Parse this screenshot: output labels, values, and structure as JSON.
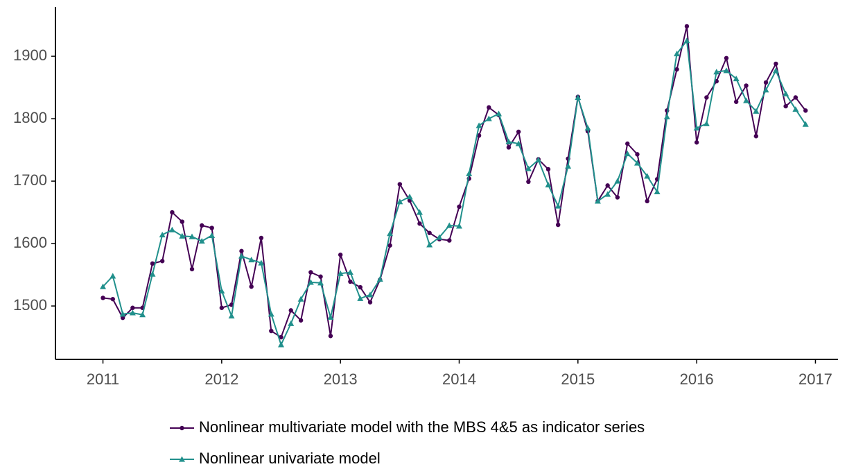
{
  "chart_data": {
    "type": "line",
    "x": [
      2011,
      2011.083,
      2011.167,
      2011.25,
      2011.333,
      2011.417,
      2011.5,
      2011.583,
      2011.667,
      2011.75,
      2011.833,
      2011.917,
      2012,
      2012.083,
      2012.167,
      2012.25,
      2012.333,
      2012.417,
      2012.5,
      2012.583,
      2012.667,
      2012.75,
      2012.833,
      2012.917,
      2013,
      2013.083,
      2013.167,
      2013.25,
      2013.333,
      2013.417,
      2013.5,
      2013.583,
      2013.667,
      2013.75,
      2013.833,
      2013.917,
      2014,
      2014.083,
      2014.167,
      2014.25,
      2014.333,
      2014.417,
      2014.5,
      2014.583,
      2014.667,
      2014.75,
      2014.833,
      2014.917,
      2015,
      2015.083,
      2015.167,
      2015.25,
      2015.333,
      2015.417,
      2015.5,
      2015.583,
      2015.667,
      2015.75,
      2015.833,
      2015.917,
      2016,
      2016.083,
      2016.167,
      2016.25,
      2016.333,
      2016.417,
      2016.5,
      2016.583,
      2016.667,
      2016.75,
      2016.833,
      2016.917
    ],
    "series": [
      {
        "name": "Nonlinear multivariate model with the MBS 4&5 as indicator series",
        "color": "#440154",
        "marker": "circle",
        "values": [
          1513,
          1511,
          1481,
          1497,
          1497,
          1568,
          1572,
          1650,
          1635,
          1559,
          1629,
          1625,
          1497,
          1502,
          1588,
          1531,
          1609,
          1460,
          1450,
          1493,
          1477,
          1554,
          1547,
          1452,
          1582,
          1539,
          1530,
          1506,
          1542,
          1597,
          1695,
          1669,
          1632,
          1617,
          1607,
          1605,
          1659,
          1704,
          1773,
          1818,
          1806,
          1754,
          1779,
          1699,
          1735,
          1719,
          1630,
          1736,
          1835,
          1780,
          1668,
          1693,
          1674,
          1760,
          1743,
          1668,
          1703,
          1813,
          1879,
          1948,
          1762,
          1834,
          1860,
          1897,
          1827,
          1853,
          1772,
          1858,
          1888,
          1820,
          1834,
          1813
        ]
      },
      {
        "name": "Nonlinear univariate model",
        "color": "#21908c",
        "marker": "triangle",
        "values": [
          1531,
          1548,
          1487,
          1489,
          1486,
          1551,
          1614,
          1622,
          1612,
          1611,
          1604,
          1613,
          1524,
          1484,
          1580,
          1574,
          1569,
          1487,
          1438,
          1472,
          1511,
          1538,
          1537,
          1482,
          1552,
          1554,
          1512,
          1518,
          1543,
          1616,
          1667,
          1675,
          1650,
          1598,
          1610,
          1629,
          1628,
          1712,
          1789,
          1800,
          1808,
          1763,
          1760,
          1720,
          1734,
          1694,
          1660,
          1724,
          1834,
          1785,
          1668,
          1679,
          1700,
          1744,
          1729,
          1708,
          1683,
          1803,
          1904,
          1925,
          1785,
          1792,
          1875,
          1877,
          1864,
          1829,
          1812,
          1846,
          1877,
          1840,
          1815,
          1791
        ]
      }
    ],
    "xlim": [
      2010.6,
      2017.19
    ],
    "xticks": [
      2011,
      2012,
      2013,
      2014,
      2015,
      2016,
      2017
    ],
    "ylim": [
      1414.5,
      1979
    ],
    "yticks": [
      1500,
      1600,
      1700,
      1800,
      1900
    ],
    "grid": false,
    "legend": "bottom"
  }
}
